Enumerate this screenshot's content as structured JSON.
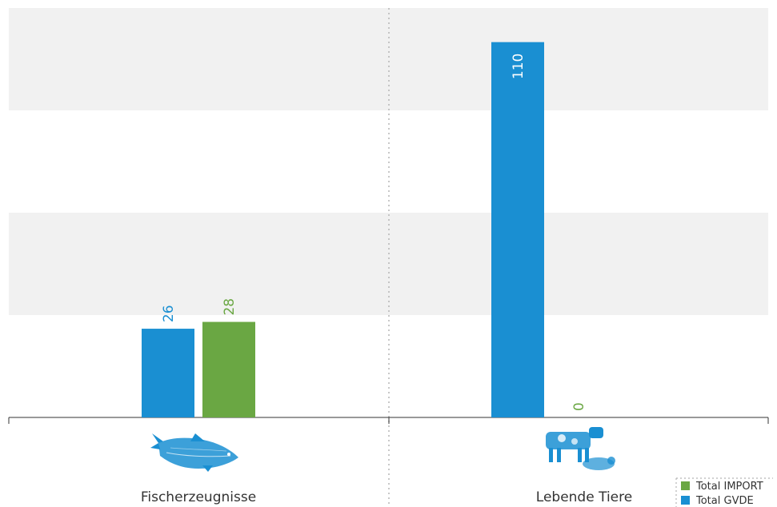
{
  "chart_data": {
    "type": "bar",
    "categories": [
      "Fischerzeugnisse",
      "Lebende Tiere"
    ],
    "category_icons": [
      "fish-icon",
      "livestock-icon"
    ],
    "series": [
      {
        "name": "Total GVDE",
        "values": [
          26,
          110
        ],
        "color": "#1a8fd2"
      },
      {
        "name": "Total IMPORT",
        "values": [
          28,
          0
        ],
        "color": "#6aa743"
      }
    ],
    "ylim": [
      0,
      120
    ],
    "grid": "alternating horizontal bands",
    "legend_position": "bottom-right",
    "legend_order": [
      "Total IMPORT",
      "Total GVDE"
    ]
  }
}
